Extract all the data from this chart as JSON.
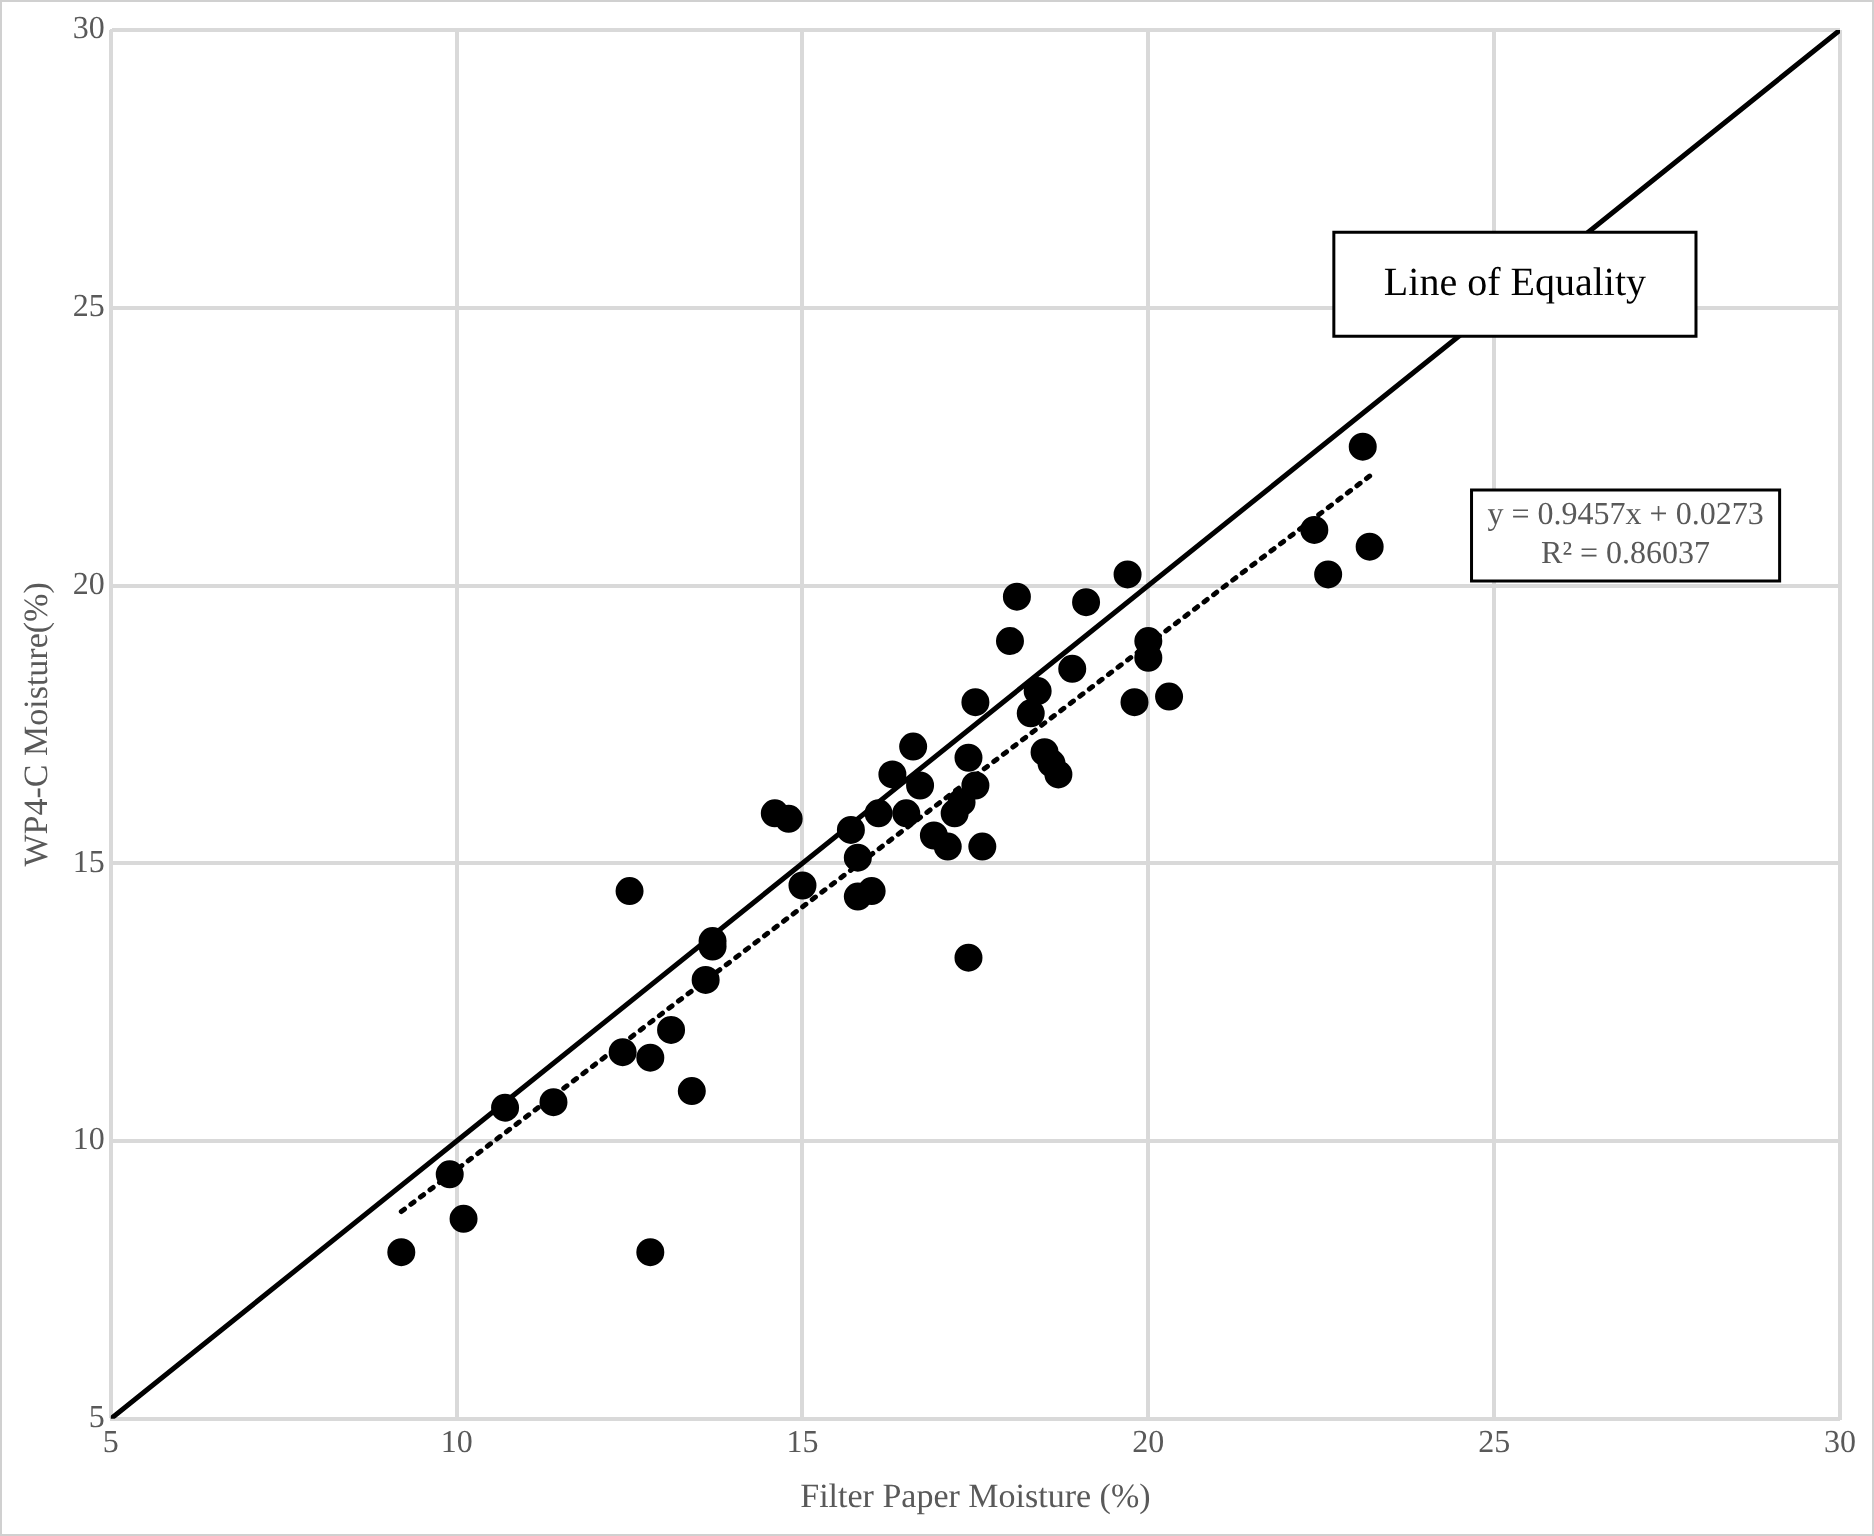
{
  "chart_data": {
    "type": "scatter",
    "xlabel": "Filter Paper Moisture (%)",
    "ylabel": "WP4-C Moisture(%)",
    "xlim": [
      5,
      30
    ],
    "xticks": [
      5,
      10,
      15,
      20,
      25,
      30
    ],
    "ylim": [
      5,
      30
    ],
    "yticks": [
      5,
      10,
      15,
      20,
      25,
      30
    ],
    "grid": true,
    "legend": false,
    "series": [
      {
        "color": "#000000",
        "marker": "circle",
        "x": [
          9.2,
          9.9,
          10.1,
          10.7,
          11.4,
          12.4,
          12.5,
          12.8,
          12.8,
          13.1,
          13.4,
          13.6,
          13.7,
          13.7,
          14.6,
          14.8,
          15.0,
          15.7,
          15.8,
          15.8,
          16.0,
          16.1,
          16.3,
          16.5,
          16.6,
          16.7,
          16.9,
          17.1,
          17.2,
          17.3,
          17.4,
          17.4,
          17.5,
          17.5,
          17.6,
          18.0,
          18.1,
          18.3,
          18.4,
          18.5,
          18.6,
          18.7,
          18.9,
          19.1,
          19.7,
          19.8,
          20.0,
          20.0,
          20.3,
          22.4,
          22.6,
          23.1,
          23.2
        ],
        "values": [
          8.0,
          9.4,
          8.6,
          10.6,
          10.7,
          11.6,
          14.5,
          11.5,
          8.0,
          12.0,
          10.9,
          12.9,
          13.6,
          13.5,
          15.9,
          15.8,
          14.6,
          15.6,
          15.1,
          14.4,
          14.5,
          15.9,
          16.6,
          15.9,
          17.1,
          16.4,
          15.5,
          15.3,
          15.9,
          16.1,
          16.9,
          13.3,
          16.4,
          17.9,
          15.3,
          19.0,
          19.8,
          17.7,
          18.1,
          17.0,
          16.8,
          16.6,
          18.5,
          19.7,
          20.2,
          17.9,
          18.7,
          19.0,
          18.0,
          21.0,
          20.2,
          22.5,
          20.7
        ]
      },
      {
        "type": "line",
        "color": "#000000",
        "marker": "none",
        "line_style": "solid",
        "x": [
          5,
          30
        ],
        "values": [
          5,
          30
        ]
      },
      {
        "type": "line",
        "color": "#000000",
        "marker": "none",
        "line_style": "dotted",
        "x": [
          9.2,
          23.2
        ],
        "values": [
          8.73,
          21.97
        ]
      }
    ],
    "annotations": [
      "Line of Equality",
      "y = 0.9457x + 0.0273",
      "R² = 0.86037"
    ]
  }
}
